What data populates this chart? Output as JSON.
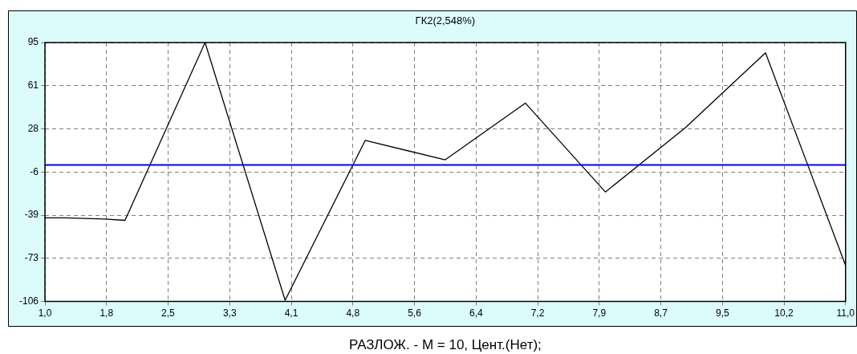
{
  "chart_data": {
    "type": "line",
    "title": "ГК2(2,548%)",
    "xlabel": "РАЗЛОЖ. - M = 10, Цент.(Нет);",
    "x": [
      1,
      1.25,
      1.75,
      2,
      3,
      4,
      5,
      6,
      7,
      8,
      9,
      10,
      11
    ],
    "series": [
      {
        "color": "#000000",
        "values": [
          -41,
          -41,
          -42,
          -43,
          95,
          -105,
          19,
          4,
          48,
          -21,
          29,
          87,
          -78
        ]
      }
    ],
    "xlim": [
      1,
      11
    ],
    "xticks": [
      {
        "value": 1,
        "label": "1,0"
      },
      {
        "value": 1.769,
        "label": "1,8"
      },
      {
        "value": 2.538,
        "label": "2,5"
      },
      {
        "value": 3.308,
        "label": "3,3"
      },
      {
        "value": 4.077,
        "label": "4,1"
      },
      {
        "value": 4.846,
        "label": "4,8"
      },
      {
        "value": 5.615,
        "label": "5,6"
      },
      {
        "value": 6.385,
        "label": "6,4"
      },
      {
        "value": 7.154,
        "label": "7,2"
      },
      {
        "value": 7.923,
        "label": "7,9"
      },
      {
        "value": 8.692,
        "label": "8,7"
      },
      {
        "value": 9.462,
        "label": "9,5"
      },
      {
        "value": 10.231,
        "label": "10,2"
      },
      {
        "value": 11,
        "label": "11,0"
      }
    ],
    "ylim": [
      -106,
      95
    ],
    "yticks": [
      -106,
      {
        "value": -72.5,
        "label": "-73"
      },
      -39,
      {
        "value": -5.5,
        "label": "-6"
      },
      28,
      {
        "value": 61.5,
        "label": "61"
      },
      95
    ],
    "ref_lines": [
      {
        "axis": "y",
        "value": 0,
        "color": "#0000ff"
      }
    ],
    "grid": true,
    "marker": "none",
    "line_style": "solid"
  }
}
